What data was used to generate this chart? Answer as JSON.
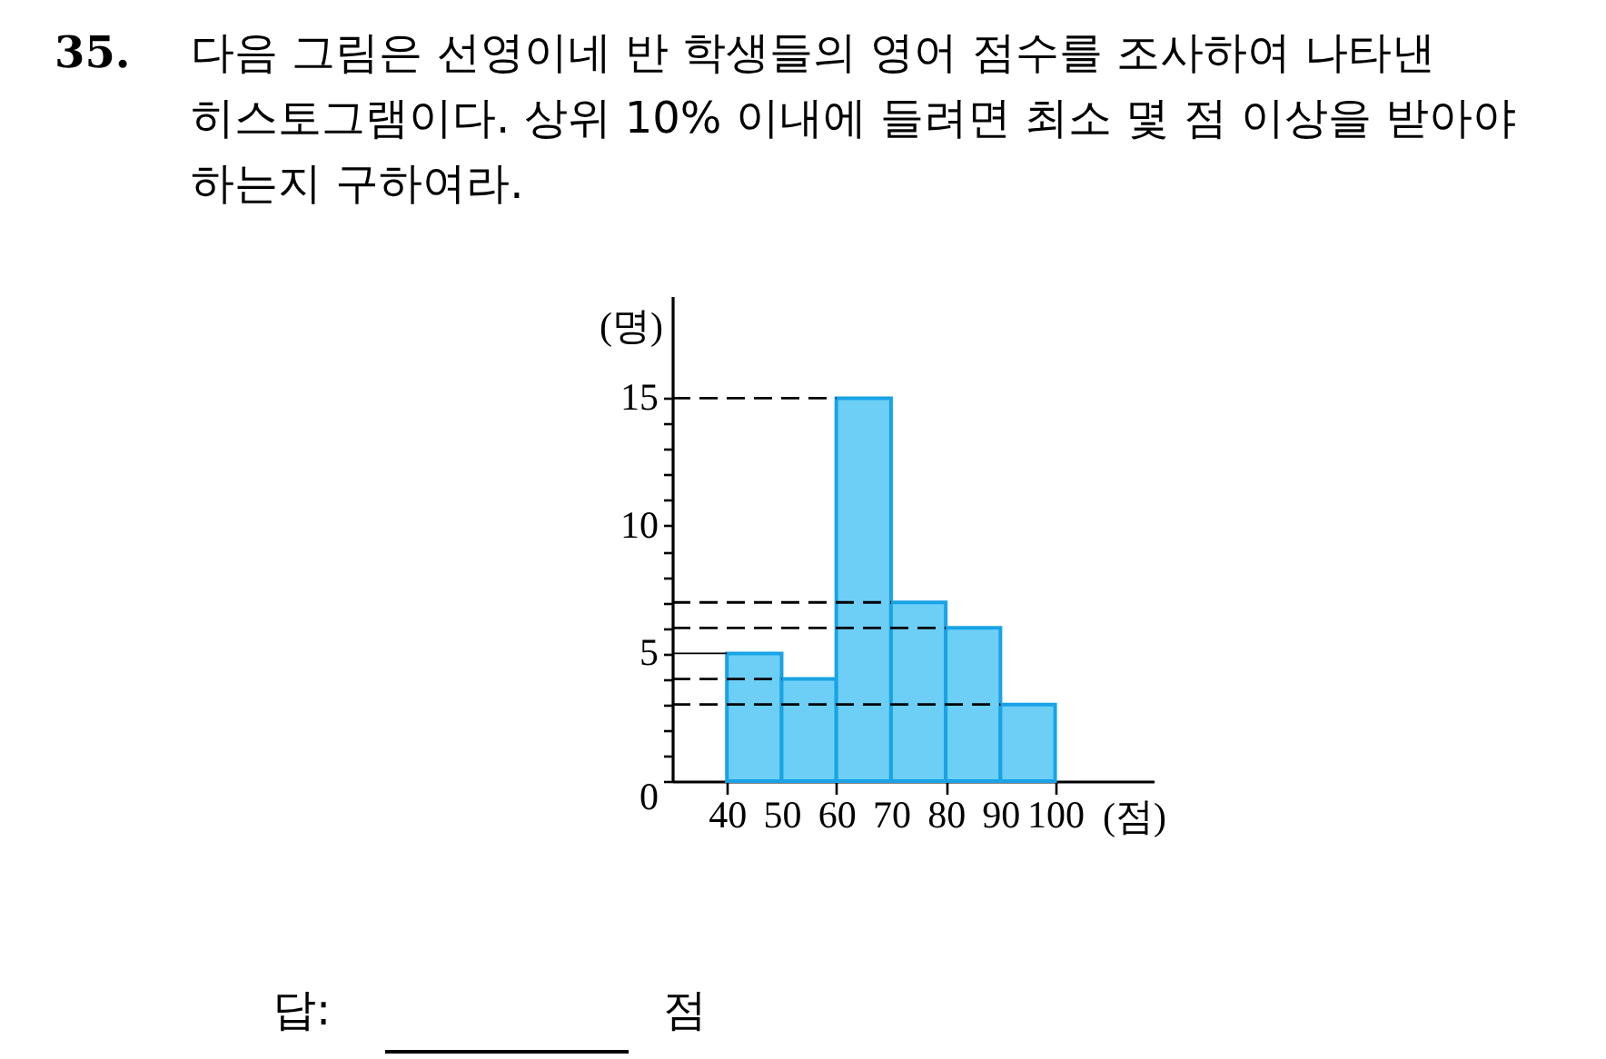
{
  "chart_data": {
    "type": "histogram",
    "title": "35. 다음 그림은 선영이네 반 학생들의 영어 점수를 조사하여 나타낸 히스토그램이다. 상위 10% 이내에 들려면 최소 몇 점 이상을 받아야 하는지 구하여라.",
    "xlabel": "(점)",
    "ylabel": "(명)",
    "bins": [
      40,
      50,
      60,
      70,
      80,
      90,
      100
    ],
    "values": [
      5,
      4,
      15,
      7,
      6,
      3
    ],
    "color": "#6dcff6",
    "xlim": [
      30,
      118
    ],
    "xticks": [
      40,
      50,
      60,
      70,
      80,
      90,
      100
    ],
    "ylim": [
      0,
      19
    ],
    "yticks": [
      0,
      {
        "value": 1,
        "label": null
      },
      {
        "value": 2,
        "label": null
      },
      {
        "value": 3,
        "label": null
      },
      {
        "value": 4,
        "label": null
      },
      5,
      {
        "value": 6,
        "label": null
      },
      {
        "value": 7,
        "label": null
      },
      {
        "value": 8,
        "label": null
      },
      {
        "value": 9,
        "label": null
      },
      10,
      {
        "value": 11,
        "label": null
      },
      {
        "value": 12,
        "label": null
      },
      {
        "value": 13,
        "label": null
      },
      {
        "value": 14,
        "label": null
      },
      15
    ],
    "ref_lines": [
      {
        "axis": "y",
        "value": 15,
        "line_style": "dashed",
        "color": "#000000"
      },
      {
        "axis": "y",
        "value": 7,
        "line_style": "dashed",
        "color": "#000000"
      },
      {
        "axis": "y",
        "value": 6,
        "line_style": "dashed",
        "color": "#000000"
      },
      {
        "axis": "y",
        "value": 5,
        "line_style": "solid",
        "color": "#000000"
      },
      {
        "axis": "y",
        "value": 4,
        "line_style": "dashed",
        "color": "#000000"
      },
      {
        "axis": "y",
        "value": 3,
        "line_style": "dashed",
        "color": "#000000"
      }
    ],
    "annotations": [
      "답:",
      "점"
    ]
  }
}
